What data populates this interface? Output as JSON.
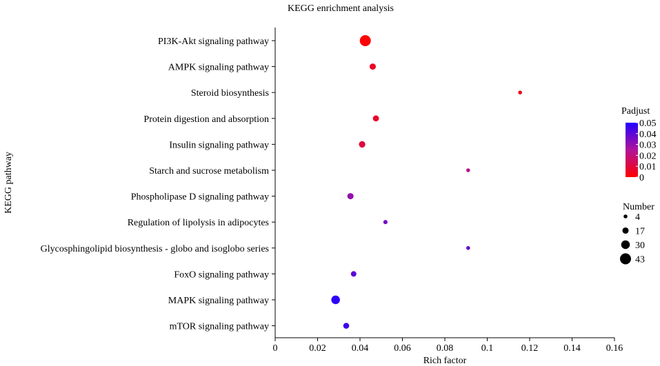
{
  "chart_data": {
    "type": "scatter",
    "title": "KEGG enrichment analysis",
    "xlabel": "Rich factor",
    "ylabel": "KEGG pathway",
    "xlim": [
      0,
      0.16
    ],
    "xticks": [
      0,
      0.02,
      0.04,
      0.06,
      0.08,
      0.1,
      0.12,
      0.14,
      0.16
    ],
    "xtick_labels": [
      "0",
      "0.02",
      "0.04",
      "0.06",
      "0.08",
      "0.1",
      "0.12",
      "0.14",
      "0.16"
    ],
    "categories": [
      "PI3K-Akt signaling pathway",
      "AMPK signaling pathway",
      "Steroid biosynthesis",
      "Protein digestion and absorption",
      "Insulin signaling pathway",
      "Starch and sucrose metabolism",
      "Phospholipase D signaling pathway",
      "Regulation of lipolysis in adipocytes",
      "Glycosphingolipid biosynthesis - globo and isoglobo series",
      "FoxO signaling pathway",
      "MAPK signaling pathway",
      "mTOR signaling pathway"
    ],
    "points": [
      {
        "pathway": "PI3K-Akt signaling pathway",
        "rich_factor": 0.0425,
        "number": 43,
        "padjust": 0.001
      },
      {
        "pathway": "AMPK signaling pathway",
        "rich_factor": 0.046,
        "number": 17,
        "padjust": 0.006
      },
      {
        "pathway": "Steroid biosynthesis",
        "rich_factor": 0.1155,
        "number": 4,
        "padjust": 0.004
      },
      {
        "pathway": "Protein digestion and absorption",
        "rich_factor": 0.0475,
        "number": 16,
        "padjust": 0.007
      },
      {
        "pathway": "Insulin signaling pathway",
        "rich_factor": 0.041,
        "number": 18,
        "padjust": 0.01
      },
      {
        "pathway": "Starch and sucrose metabolism",
        "rich_factor": 0.091,
        "number": 4,
        "padjust": 0.022
      },
      {
        "pathway": "Phospholipase D signaling pathway",
        "rich_factor": 0.0355,
        "number": 17,
        "padjust": 0.03
      },
      {
        "pathway": "Regulation of lipolysis in adipocytes",
        "rich_factor": 0.052,
        "number": 6,
        "padjust": 0.036
      },
      {
        "pathway": "Glycosphingolipid biosynthesis - globo and isoglobo series",
        "rich_factor": 0.091,
        "number": 4,
        "padjust": 0.038
      },
      {
        "pathway": "FoxO signaling pathway",
        "rich_factor": 0.037,
        "number": 13,
        "padjust": 0.04
      },
      {
        "pathway": "MAPK signaling pathway",
        "rich_factor": 0.0285,
        "number": 30,
        "padjust": 0.048
      },
      {
        "pathway": "mTOR signaling pathway",
        "rich_factor": 0.0335,
        "number": 15,
        "padjust": 0.045
      }
    ],
    "color_legend": {
      "title": "Padjust",
      "min": 0,
      "max": 0.05,
      "low_color": "#ff0000",
      "high_color": "#2200ff",
      "ticks": [
        0,
        0.01,
        0.02,
        0.03,
        0.04,
        0.05
      ],
      "tick_labels": [
        "0",
        "0.01",
        "0.02",
        "0.03",
        "0.04",
        "0.05"
      ]
    },
    "size_legend": {
      "title": "Number",
      "values": [
        4,
        17,
        30,
        43
      ],
      "labels": [
        "4",
        "17",
        "30",
        "43"
      ]
    }
  }
}
